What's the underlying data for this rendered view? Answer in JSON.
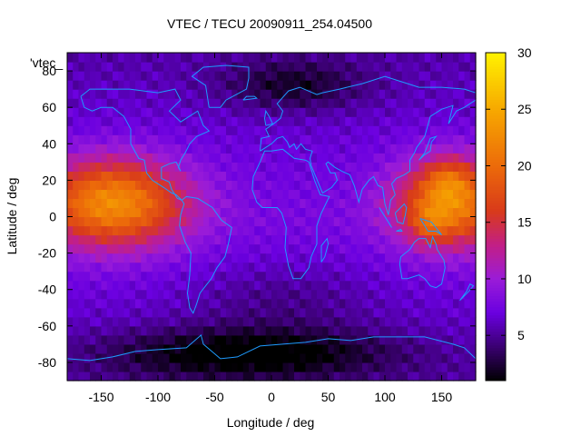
{
  "chart_data": {
    "type": "heatmap",
    "title": "VTEC / TECU 20090911_254.04500",
    "xlabel": "Longitude / deg",
    "ylabel": "Latitude / deg",
    "key_label": "'vtec_",
    "xlim": [
      -180,
      180
    ],
    "ylim": [
      -90,
      90
    ],
    "xticks": [
      -150,
      -100,
      -50,
      0,
      50,
      100,
      150
    ],
    "yticks": [
      -80,
      -60,
      -40,
      -20,
      0,
      20,
      40,
      60,
      80
    ],
    "colorbar": {
      "range": [
        1,
        30
      ],
      "ticks": [
        5,
        10,
        15,
        20,
        25,
        30
      ],
      "stops": [
        {
          "v": 1,
          "color": "#000000"
        },
        {
          "v": 4,
          "color": "#3a0070"
        },
        {
          "v": 7,
          "color": "#6a00e0"
        },
        {
          "v": 10,
          "color": "#9a1cd8"
        },
        {
          "v": 13,
          "color": "#c21f86"
        },
        {
          "v": 16,
          "color": "#d83a1a"
        },
        {
          "v": 20,
          "color": "#ec6a0a"
        },
        {
          "v": 25,
          "color": "#f7a800"
        },
        {
          "v": 30,
          "color": "#fff200"
        }
      ]
    },
    "grid_step": {
      "lon": 5,
      "lat": 5
    },
    "features": [
      {
        "name": "equatorial-anomaly-pacific-east",
        "lon": -140,
        "lat": 8,
        "width_lon": 45,
        "width_lat": 17,
        "amp": 15
      },
      {
        "name": "equatorial-anomaly-pacific-west",
        "lon": 160,
        "lat": 8,
        "width_lon": 35,
        "width_lat": 17,
        "amp": 14
      },
      {
        "name": "peak-north",
        "lon": 155,
        "lat": 20,
        "width_lon": 14,
        "width_lat": 8,
        "amp": 4
      },
      {
        "name": "peak-south",
        "lon": 140,
        "lat": -3,
        "width_lon": 12,
        "width_lat": 8,
        "amp": 4
      }
    ],
    "background_level": 8,
    "low_regions": [
      {
        "name": "south-polar-low",
        "lon": -20,
        "lat": -75,
        "width_lon": 90,
        "width_lat": 10,
        "depth": 6
      },
      {
        "name": "north-europe-low",
        "lon": 20,
        "lat": 72,
        "width_lon": 45,
        "width_lat": 10,
        "depth": 4
      },
      {
        "name": "south-atlantic-low",
        "lon": 10,
        "lat": -45,
        "width_lon": 60,
        "width_lat": 15,
        "depth": 2
      }
    ],
    "coastline_color": "#1e9bff"
  }
}
